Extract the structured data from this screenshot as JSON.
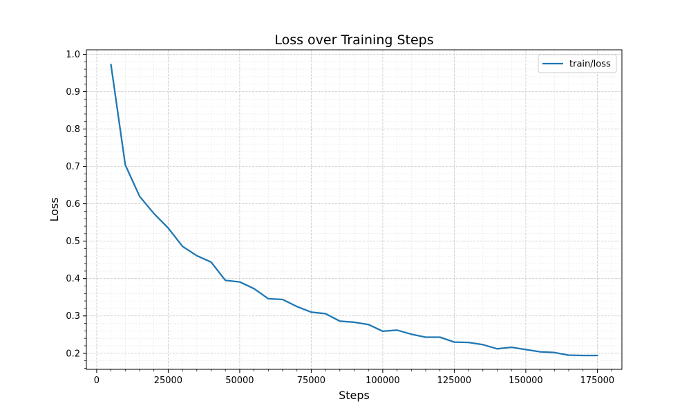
{
  "chart_data": {
    "type": "line",
    "title": "Loss over Training Steps",
    "xlabel": "Steps",
    "ylabel": "Loss",
    "xlim": [
      -3600,
      183600
    ],
    "ylim": [
      0.157,
      1.012
    ],
    "x_ticks": [
      0,
      25000,
      50000,
      75000,
      100000,
      125000,
      150000,
      175000
    ],
    "y_ticks": [
      0.2,
      0.3,
      0.4,
      0.5,
      0.6,
      0.7,
      0.8,
      0.9,
      1.0
    ],
    "x_tick_labels": [
      "0",
      "25000",
      "50000",
      "75000",
      "100000",
      "125000",
      "150000",
      "175000"
    ],
    "y_tick_labels": [
      "0.2",
      "0.3",
      "0.4",
      "0.5",
      "0.6",
      "0.7",
      "0.8",
      "0.9",
      "1.0"
    ],
    "grid": true,
    "minor_grid": true,
    "legend_position": "top-right",
    "series": [
      {
        "name": "train/loss",
        "color": "#1f77b4",
        "x": [
          5000,
          10000,
          15000,
          20000,
          25000,
          30000,
          35000,
          40000,
          45000,
          50000,
          55000,
          60000,
          65000,
          70000,
          75000,
          80000,
          85000,
          90000,
          95000,
          100000,
          105000,
          110000,
          115000,
          120000,
          125000,
          130000,
          135000,
          140000,
          145000,
          150000,
          155000,
          160000,
          165000,
          170000,
          175000
        ],
        "y": [
          0.972,
          0.704,
          0.62,
          0.574,
          0.535,
          0.486,
          0.461,
          0.444,
          0.395,
          0.391,
          0.373,
          0.346,
          0.344,
          0.325,
          0.31,
          0.306,
          0.286,
          0.283,
          0.277,
          0.259,
          0.262,
          0.251,
          0.243,
          0.243,
          0.23,
          0.229,
          0.223,
          0.212,
          0.216,
          0.21,
          0.204,
          0.202,
          0.195,
          0.194,
          0.194
        ]
      }
    ]
  }
}
